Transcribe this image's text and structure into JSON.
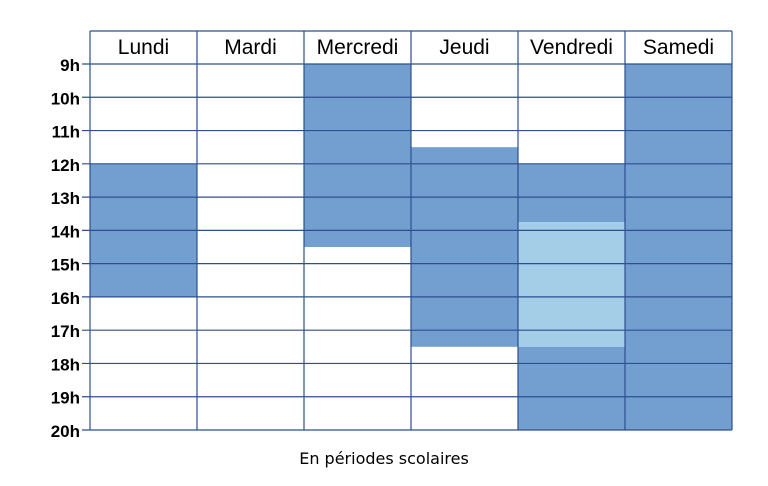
{
  "timetable": {
    "days": [
      "Lundi",
      "Mardi",
      "Mercredi",
      "Jeudi",
      "Vendredi",
      "Samedi"
    ],
    "hours": [
      "9h",
      "10h",
      "11h",
      "12h",
      "13h",
      "14h",
      "15h",
      "16h",
      "17h",
      "18h",
      "19h",
      "20h"
    ],
    "start_hour": 9,
    "end_hour": 20,
    "blocks": [
      {
        "day": "Lundi",
        "from": 12,
        "to": 16,
        "color": "#729fcf"
      },
      {
        "day": "Mercredi",
        "from": 9,
        "to": 14.5,
        "color": "#729fcf"
      },
      {
        "day": "Jeudi",
        "from": 11.5,
        "to": 17.5,
        "color": "#729fcf"
      },
      {
        "day": "Vendredi",
        "from": 12,
        "to": 13.75,
        "color": "#729fcf"
      },
      {
        "day": "Vendredi",
        "from": 13.75,
        "to": 17.5,
        "color": "#a4cde8"
      },
      {
        "day": "Vendredi",
        "from": 17.5,
        "to": 20,
        "color": "#729fcf"
      },
      {
        "day": "Samedi",
        "from": 9,
        "to": 20,
        "color": "#729fcf"
      }
    ],
    "grid_color": "#2e4f8f"
  },
  "caption": "En périodes scolaires"
}
